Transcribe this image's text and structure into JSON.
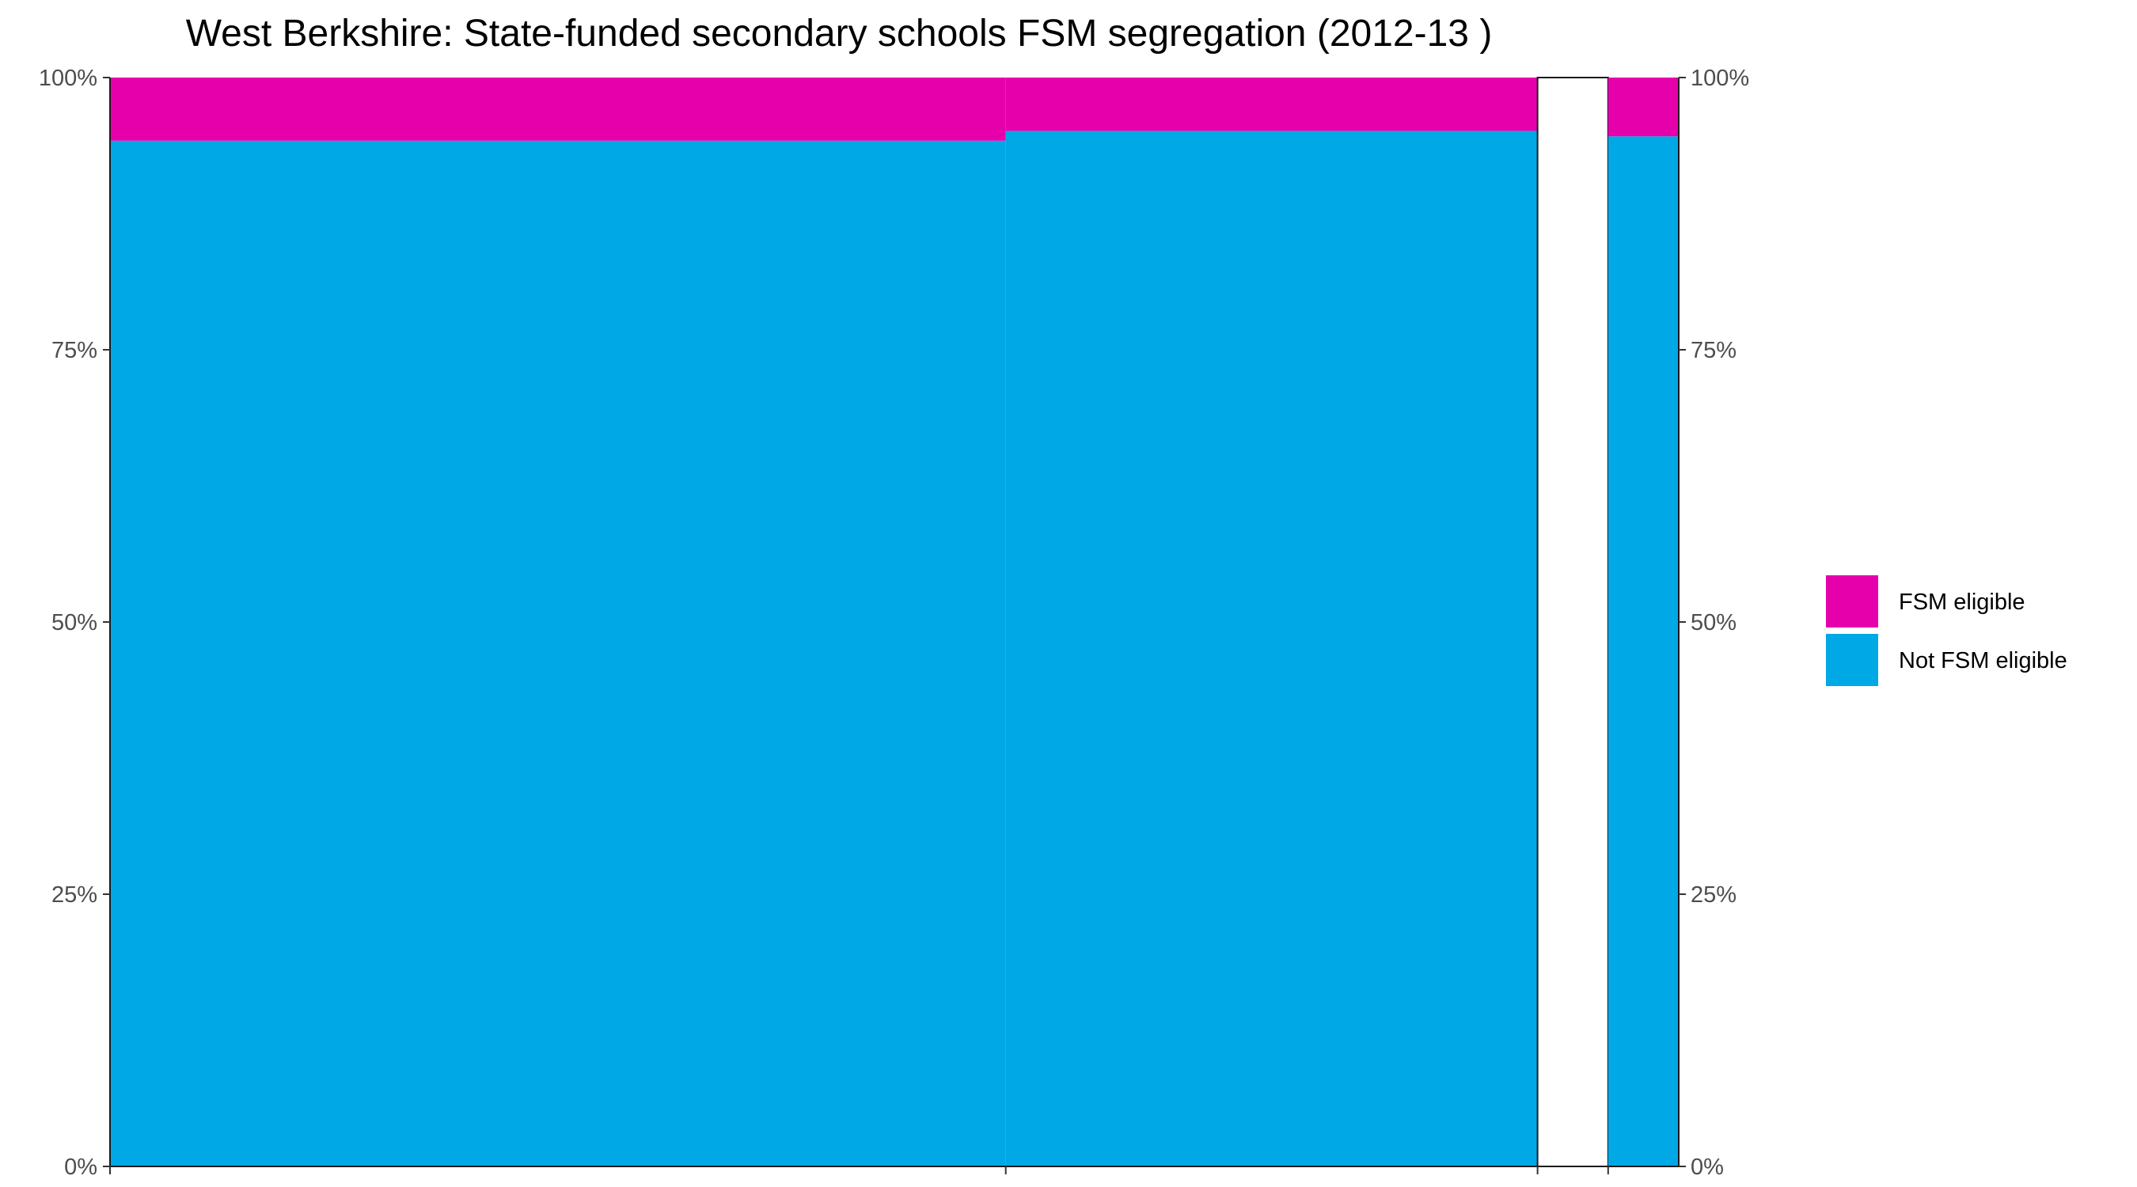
{
  "chart_data": {
    "type": "mosaic",
    "title": "West Berkshire: State-funded secondary schools FSM segregation (2012-13 )",
    "xlabel": "",
    "ylabel": "",
    "ylim": [
      0,
      100
    ],
    "y_ticks": [
      "0%",
      "25%",
      "50%",
      "75%",
      "100%"
    ],
    "series_names": [
      "FSM eligible",
      "Not FSM eligible"
    ],
    "colors": {
      "FSM eligible": "#E600AC",
      "Not FSM eligible": "#00A8E6"
    },
    "columns": [
      {
        "share_of_pupils": 57.1,
        "fsm_eligible_pct": 5.8,
        "not_fsm_eligible_pct": 94.2
      },
      {
        "share_of_pupils": 33.9,
        "fsm_eligible_pct": 4.9,
        "not_fsm_eligible_pct": 95.1
      },
      {
        "share_of_pupils": 4.5,
        "fsm_eligible_pct": 0,
        "not_fsm_eligible_pct": 0
      },
      {
        "share_of_pupils": 4.5,
        "fsm_eligible_pct": 5.4,
        "not_fsm_eligible_pct": 94.6
      }
    ],
    "legend": [
      {
        "label": "FSM eligible",
        "color": "#E600AC"
      },
      {
        "label": "Not FSM eligible",
        "color": "#00A8E6"
      }
    ],
    "legend_position": "right"
  }
}
